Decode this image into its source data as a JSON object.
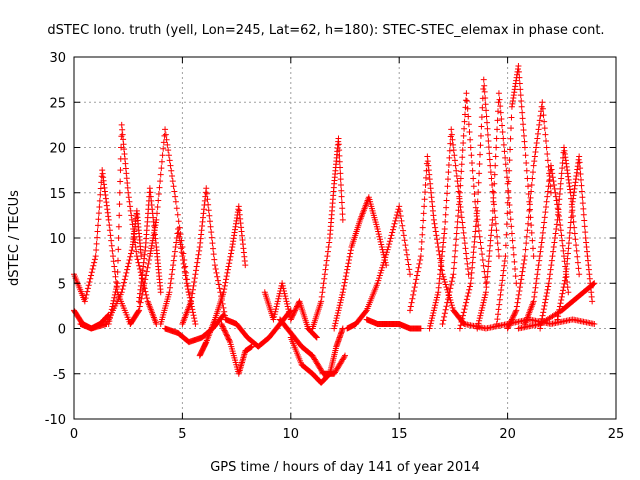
{
  "chart_data": {
    "type": "scatter",
    "title": "dSTEC Iono. truth (yell, Lon=245, Lat=62, h=180): STEC-STEC_elemax in phase cont.",
    "xlabel": "GPS time / hours of day 141 of year 2014",
    "ylabel": "dSTEC  / TECUs",
    "xlim": [
      0,
      25
    ],
    "ylim": [
      -10,
      30
    ],
    "xticks": [
      0,
      5,
      10,
      15,
      20,
      25
    ],
    "yticks": [
      -10,
      -5,
      0,
      5,
      10,
      15,
      20,
      25,
      30
    ],
    "xtick_labels": [
      "0",
      "5",
      "10",
      "15",
      "20",
      "25"
    ],
    "ytick_labels": [
      "-10",
      "-5",
      "0",
      "5",
      "10",
      "15",
      "20",
      "25",
      "30"
    ],
    "grid": true,
    "marker": "plus",
    "color": "#ff0000",
    "series": [
      {
        "x": [
          0.0,
          0.5,
          1.0,
          1.3,
          1.6,
          2.0,
          2.6
        ],
        "y": [
          6,
          3,
          8,
          17.5,
          12,
          4,
          0.5
        ]
      },
      {
        "x": [
          0.0,
          0.4,
          0.8,
          1.2,
          1.6
        ],
        "y": [
          2,
          0.5,
          0,
          0.5,
          1.5
        ]
      },
      {
        "x": [
          1.6,
          2.0,
          2.2,
          2.5,
          2.9,
          3.4,
          3.8
        ],
        "y": [
          0.5,
          5,
          22.5,
          15,
          8,
          3,
          0.5
        ]
      },
      {
        "x": [
          0.3,
          0.8,
          1.5,
          2.2,
          2.7,
          2.9,
          3.1
        ],
        "y": [
          0.5,
          0,
          0.5,
          4,
          9,
          13,
          8
        ]
      },
      {
        "x": [
          2.6,
          3.0,
          3.5,
          3.8,
          4.2,
          4.7,
          5.3
        ],
        "y": [
          0.5,
          2,
          8,
          12,
          22,
          14,
          4
        ]
      },
      {
        "x": [
          3.0,
          3.3,
          3.5,
          3.8,
          4.0
        ],
        "y": [
          3,
          9,
          15.5,
          9,
          4
        ]
      },
      {
        "x": [
          4.0,
          4.4,
          4.8,
          5.2,
          5.6
        ],
        "y": [
          0.5,
          4,
          11,
          5,
          0.5
        ]
      },
      {
        "x": [
          4.2,
          4.8,
          5.3,
          5.9,
          6.4,
          6.9
        ],
        "y": [
          0,
          -0.5,
          -1.5,
          -1,
          0,
          1.5
        ]
      },
      {
        "x": [
          5.0,
          5.4,
          5.8,
          6.1,
          6.5,
          7.0
        ],
        "y": [
          0.5,
          3,
          9,
          15.5,
          7,
          1
        ]
      },
      {
        "x": [
          5.8,
          6.1,
          6.5,
          6.9,
          7.3,
          7.6,
          7.9
        ],
        "y": [
          -3,
          -1.5,
          1,
          4,
          9,
          13.5,
          7
        ]
      },
      {
        "x": [
          6.8,
          7.2,
          7.6,
          7.9,
          8.2
        ],
        "y": [
          0.5,
          -1.5,
          -5,
          -2.5,
          -2
        ]
      },
      {
        "x": [
          7.0,
          7.5,
          8.0,
          8.5,
          9.0,
          9.5,
          10.0
        ],
        "y": [
          1,
          0.5,
          -1,
          -2,
          -1,
          0.5,
          2
        ]
      },
      {
        "x": [
          8.8,
          9.2,
          9.6,
          10.0,
          10.4,
          10.8,
          11.2
        ],
        "y": [
          4,
          1,
          5,
          1,
          3,
          0,
          -1
        ]
      },
      {
        "x": [
          9.5,
          10.0,
          10.5,
          11.0,
          11.5,
          12.0,
          12.5
        ],
        "y": [
          1,
          -0.5,
          -2,
          -3,
          -5,
          -5,
          -3
        ]
      },
      {
        "x": [
          10.0,
          10.5,
          11.0,
          11.4,
          11.8,
          12.1,
          12.4
        ],
        "y": [
          -1,
          -4,
          -5,
          -6,
          -5,
          -2,
          0
        ]
      },
      {
        "x": [
          11.0,
          11.4,
          11.8,
          12.0,
          12.2,
          12.4
        ],
        "y": [
          0,
          3,
          10,
          16,
          21,
          12
        ]
      },
      {
        "x": [
          12.0,
          12.4,
          12.8,
          13.2,
          13.6,
          14.0,
          14.4
        ],
        "y": [
          0,
          4,
          9,
          12,
          14.5,
          11,
          7
        ]
      },
      {
        "x": [
          12.6,
          13.0,
          13.5,
          14.0,
          14.5,
          15.0,
          15.5
        ],
        "y": [
          0,
          0.5,
          2,
          5,
          9,
          13.5,
          6
        ]
      },
      {
        "x": [
          13.5,
          14.0,
          14.5,
          15.0,
          15.5,
          16.0
        ],
        "y": [
          1,
          0.5,
          0.5,
          0.5,
          0,
          0
        ]
      },
      {
        "x": [
          15.5,
          16.0,
          16.3,
          16.6,
          17.0,
          17.5,
          18.0
        ],
        "y": [
          2,
          8,
          19,
          12,
          6,
          2,
          0.5
        ]
      },
      {
        "x": [
          16.4,
          16.8,
          17.1,
          17.4,
          17.8,
          18.2
        ],
        "y": [
          0,
          4,
          11,
          22,
          14,
          6
        ]
      },
      {
        "x": [
          17.0,
          17.5,
          17.8,
          18.1,
          18.5,
          19.0
        ],
        "y": [
          0.5,
          6,
          15,
          26,
          14,
          5
        ]
      },
      {
        "x": [
          17.8,
          18.3,
          18.6,
          18.9,
          19.2,
          19.6
        ],
        "y": [
          0,
          5,
          13,
          27.5,
          18,
          8
        ]
      },
      {
        "x": [
          18.6,
          19.0,
          19.3,
          19.6,
          20.0,
          20.4
        ],
        "y": [
          0,
          4,
          12,
          26,
          16,
          5
        ]
      },
      {
        "x": [
          19.5,
          19.9,
          20.2,
          20.5,
          20.8,
          21.2
        ],
        "y": [
          0.5,
          8,
          24.5,
          29,
          20,
          8
        ]
      },
      {
        "x": [
          20.0,
          20.4,
          20.8,
          21.2,
          21.6,
          22.0
        ],
        "y": [
          0,
          2,
          8,
          18,
          25,
          15
        ]
      },
      {
        "x": [
          20.8,
          21.2,
          21.6,
          22.0,
          22.4,
          22.8
        ],
        "y": [
          0.5,
          3,
          10,
          18,
          12,
          4
        ]
      },
      {
        "x": [
          21.5,
          21.9,
          22.3,
          22.6,
          22.9,
          23.3
        ],
        "y": [
          0,
          5,
          12,
          20,
          15,
          6
        ]
      },
      {
        "x": [
          22.3,
          22.7,
          23.0,
          23.3,
          23.6,
          23.9
        ],
        "y": [
          1,
          6,
          14,
          19,
          10,
          3
        ]
      },
      {
        "x": [
          18.0,
          19.0,
          20.0,
          21.0,
          22.0,
          23.0,
          24.0
        ],
        "y": [
          0.5,
          0,
          0.5,
          1,
          0.5,
          1,
          0.5
        ]
      },
      {
        "x": [
          20.5,
          21.5,
          22.5,
          23.0,
          23.5,
          24.0
        ],
        "y": [
          0,
          0.5,
          2,
          3,
          4,
          5
        ]
      }
    ]
  }
}
